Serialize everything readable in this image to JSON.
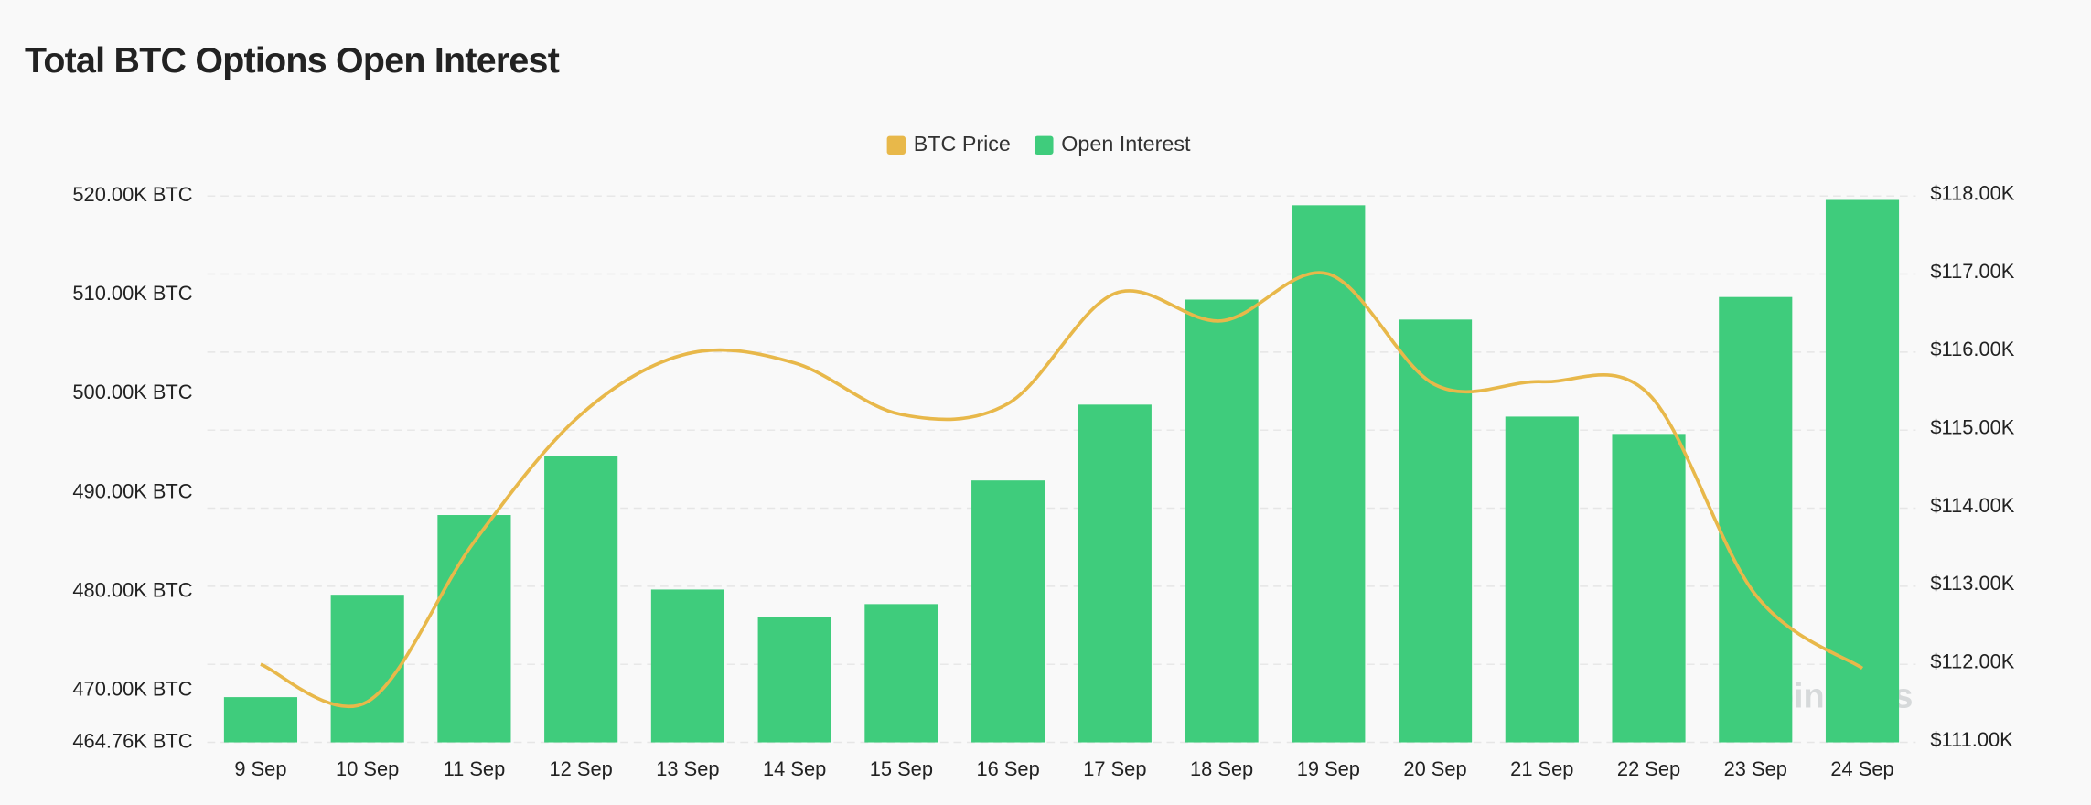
{
  "chart_data": {
    "type": "bar",
    "title": "Total BTC Options Open Interest",
    "categories": [
      "9 Sep",
      "10 Sep",
      "11 Sep",
      "12 Sep",
      "13 Sep",
      "14 Sep",
      "15 Sep",
      "16 Sep",
      "17 Sep",
      "18 Sep",
      "19 Sep",
      "20 Sep",
      "21 Sep",
      "22 Sep",
      "23 Sep",
      "24 Sep"
    ],
    "series": [
      {
        "name": "BTC Price",
        "type": "line",
        "axis": "y2",
        "color": "#e8b84a",
        "values": [
          112000,
          111520,
          113570,
          115200,
          115980,
          115860,
          115200,
          115340,
          116750,
          116400,
          117000,
          115580,
          115620,
          115460,
          112890,
          111950
        ]
      },
      {
        "name": "Open Interest",
        "type": "bar",
        "color": "#3fcc7c",
        "values": [
          469330,
          479680,
          487740,
          493660,
          480210,
          477390,
          478740,
          491240,
          498900,
          509520,
          519060,
          507500,
          497690,
          495940,
          509780,
          519600
        ]
      }
    ],
    "ylim": [
      464760,
      520000
    ],
    "yticks": [
      {
        "value": 464760,
        "label": "464.76K BTC"
      },
      {
        "value": 470000,
        "label": "470.00K BTC"
      },
      {
        "value": 480000,
        "label": "480.00K BTC"
      },
      {
        "value": 490000,
        "label": "490.00K BTC"
      },
      {
        "value": 500000,
        "label": "500.00K BTC"
      },
      {
        "value": 510000,
        "label": "510.00K BTC"
      },
      {
        "value": 520000,
        "label": "520.00K BTC"
      }
    ],
    "y2lim": [
      111000,
      118000
    ],
    "y2ticks": [
      {
        "value": 111000,
        "label": "$111.00K"
      },
      {
        "value": 112000,
        "label": "$112.00K"
      },
      {
        "value": 113000,
        "label": "$113.00K"
      },
      {
        "value": 114000,
        "label": "$114.00K"
      },
      {
        "value": 115000,
        "label": "$115.00K"
      },
      {
        "value": 116000,
        "label": "$116.00K"
      },
      {
        "value": 117000,
        "label": "$117.00K"
      },
      {
        "value": 118000,
        "label": "$118.00K"
      }
    ],
    "grid": true,
    "legend": "top",
    "watermark": "coinglass"
  }
}
